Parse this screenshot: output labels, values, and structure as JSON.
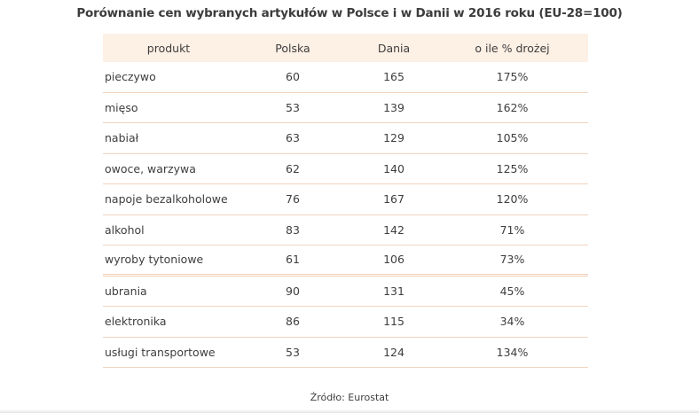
{
  "chart_data": {
    "type": "table",
    "title": "Porównanie cen wybranych artykułów w Polsce i w Danii w 2016 roku (EU-28=100)",
    "columns": [
      "produkt",
      "Polska",
      "Dania",
      "o ile % drożej"
    ],
    "rows": [
      {
        "produkt": "pieczywo",
        "polska": "60",
        "dania": "165",
        "drozej": "175%"
      },
      {
        "produkt": "mięso",
        "polska": "53",
        "dania": "139",
        "drozej": "162%"
      },
      {
        "produkt": "nabiał",
        "polska": "63",
        "dania": "129",
        "drozej": "105%"
      },
      {
        "produkt": "owoce, warzywa",
        "polska": "62",
        "dania": "140",
        "drozej": "125%"
      },
      {
        "produkt": "napoje bezalkoholowe",
        "polska": "76",
        "dania": "167",
        "drozej": "120%"
      },
      {
        "produkt": "alkohol",
        "polska": "83",
        "dania": "142",
        "drozej": "71%"
      },
      {
        "produkt": "wyroby tytoniowe",
        "polska": "61",
        "dania": "106",
        "drozej": "73%"
      },
      {
        "produkt": "ubrania",
        "polska": "90",
        "dania": "131",
        "drozej": "45%"
      },
      {
        "produkt": "elektronika",
        "polska": "86",
        "dania": "115",
        "drozej": "34%"
      },
      {
        "produkt": "usługi transportowe",
        "polska": "53",
        "dania": "124",
        "drozej": "134%"
      }
    ],
    "source": "Źródło: Eurostat"
  },
  "colors": {
    "header_bg": "#fdf0e5",
    "row_border": "#f2d4bd",
    "text": "#3e3e3e"
  }
}
